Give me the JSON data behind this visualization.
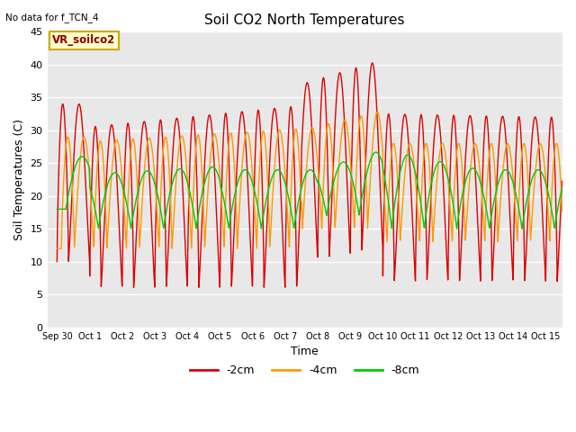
{
  "title": "Soil CO2 North Temperatures",
  "subtitle": "No data for f_TCN_4",
  "xlabel": "Time",
  "ylabel": "Soil Temperatures (C)",
  "ylim": [
    0,
    45
  ],
  "annotation_box": "VR_soilco2",
  "colors": {
    "-2cm": "#dd0000",
    "-4cm": "#ff9900",
    "-8cm": "#00cc00"
  },
  "bg_color": "#e8e8e8",
  "tick_labels": [
    "Sep 30",
    "Oct 1",
    "Oct 2",
    "Oct 3",
    "Oct 4",
    "Oct 5",
    "Oct 6",
    "Oct 7",
    "Oct 8",
    "Oct 9",
    "Oct 10",
    "Oct 11",
    "Oct 12",
    "Oct 13",
    "Oct 14",
    "Oct 15"
  ],
  "grid_color": "#ffffff",
  "legend_labels": [
    "-2cm",
    "-4cm",
    "-8cm"
  ]
}
